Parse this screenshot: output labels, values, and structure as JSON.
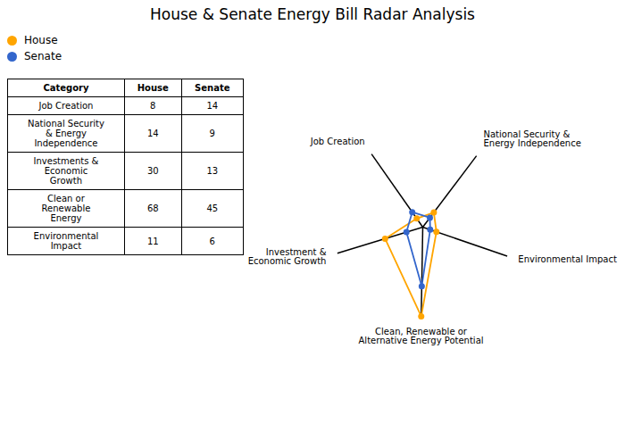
{
  "chart_data": [
    {
      "type": "radar",
      "title": "House & Senate Energy Bill Radar Analysis",
      "categories": [
        "Job Creation",
        "National Security &\nEnergy Independence",
        "Environmental Impact",
        "Clean, Renewable or\nAlternative Energy Potential",
        "Investment &\nEconomic Growth"
      ],
      "series": [
        {
          "name": "House",
          "color": "#FFA500",
          "values": [
            8,
            14,
            11,
            68,
            30
          ]
        },
        {
          "name": "Senate",
          "color": "#3366CC",
          "values": [
            14,
            9,
            6,
            45,
            13
          ]
        }
      ],
      "ylim": [
        0,
        68
      ],
      "tick_labels": false,
      "grid": false,
      "legend": "upper left"
    },
    {
      "type": "table",
      "columns": [
        "Category",
        "House",
        "Senate"
      ],
      "rows": [
        [
          "Job Creation",
          8,
          14
        ],
        [
          "National Security\n& Energy\nIndependence",
          14,
          9
        ],
        [
          "Investments &\nEconomic\nGrowth",
          30,
          13
        ],
        [
          "Clean or\nRenewable\nEnergy",
          68,
          45
        ],
        [
          "Environmental\nImpact",
          11,
          6
        ]
      ]
    }
  ]
}
